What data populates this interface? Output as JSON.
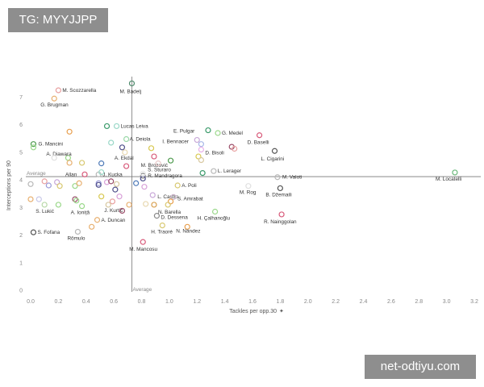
{
  "header_tag": "TG: MYYJJPP",
  "watermark": "net-odtiyu.com",
  "chart_data": {
    "type": "scatter",
    "title": "",
    "xlabel": "Tackles per opp.30",
    "ylabel": "Interceptions per 90",
    "xlim": [
      0,
      3.2
    ],
    "ylim": [
      0,
      7.6
    ],
    "xticks": [
      "0.0",
      "0.2",
      "0.4",
      "0.6",
      "0.8",
      "1.0",
      "1.2",
      "1.4",
      "1.6",
      "1.8",
      "2.0",
      "2.2",
      "2.4",
      "2.6",
      "2.8",
      "3.0",
      "3.2"
    ],
    "yticks": [
      "0",
      "1",
      "2",
      "3",
      "4",
      "5",
      "6",
      "7"
    ],
    "grid": false,
    "average": {
      "x": 0.73,
      "y": 4.12,
      "x_label": "Average",
      "y_label": "Average"
    },
    "points": [
      {
        "name": "M. Scozzarella",
        "x": 0.2,
        "y": 7.25,
        "color": "#e8a0a0"
      },
      {
        "name": "G. Brugman",
        "x": 0.17,
        "y": 6.95,
        "color": "#e8b070"
      },
      {
        "name": "M. Badelj",
        "x": 0.73,
        "y": 7.5,
        "color": "#4e8a6c"
      },
      {
        "name": "Lucas Leiva",
        "x": 0.62,
        "y": 5.95,
        "color": "#9ad8c8"
      },
      {
        "name": "",
        "x": 0.55,
        "y": 5.95,
        "color": "#3a9a6a"
      },
      {
        "name": "E. Pulgar",
        "x": 1.28,
        "y": 5.8,
        "color": "#3a9a6a"
      },
      {
        "name": "G. Medel",
        "x": 1.35,
        "y": 5.7,
        "color": "#9ad88a"
      },
      {
        "name": "",
        "x": 0.28,
        "y": 5.75,
        "color": "#e8a050"
      },
      {
        "name": "D. Baselli",
        "x": 1.65,
        "y": 5.62,
        "color": "#d85a7a"
      },
      {
        "name": "A. Deiola",
        "x": 0.69,
        "y": 5.48,
        "color": "#9ad8a8"
      },
      {
        "name": "I. Bennacer",
        "x": 1.2,
        "y": 5.45,
        "color": "#c8a8d8"
      },
      {
        "name": "",
        "x": 1.23,
        "y": 5.3,
        "color": "#a8b8e8"
      },
      {
        "name": "G. Mancini",
        "x": 0.02,
        "y": 5.3,
        "color": "#4e9a4e"
      },
      {
        "name": "",
        "x": 0.02,
        "y": 5.18,
        "color": "#9ad88a"
      },
      {
        "name": "",
        "x": 0.58,
        "y": 5.35,
        "color": "#9ad8c8"
      },
      {
        "name": "",
        "x": 0.66,
        "y": 5.18,
        "color": "#4e4e8a"
      },
      {
        "name": "",
        "x": 0.87,
        "y": 5.15,
        "color": "#d8c850"
      },
      {
        "name": "D. Bisoli",
        "x": 1.23,
        "y": 5.1,
        "color": "#e8b0e8"
      },
      {
        "name": "",
        "x": 1.45,
        "y": 5.2,
        "color": "#9a4e6a"
      },
      {
        "name": "",
        "x": 1.47,
        "y": 5.13,
        "color": "#e8a0a0"
      },
      {
        "name": "L. Cigarini",
        "x": 1.76,
        "y": 5.05,
        "color": "#555555"
      },
      {
        "name": "A. Ekdal",
        "x": 0.68,
        "y": 5.0,
        "color": "#e8d8b0"
      },
      {
        "name": "A. Diawara",
        "x": 0.27,
        "y": 4.8,
        "color": "#9ad88a"
      },
      {
        "name": "",
        "x": 0.17,
        "y": 4.8,
        "color": "#e0e0e0"
      },
      {
        "name": "",
        "x": 0.28,
        "y": 4.62,
        "color": "#e8b070"
      },
      {
        "name": "",
        "x": 0.37,
        "y": 4.62,
        "color": "#d8c870"
      },
      {
        "name": "",
        "x": 0.51,
        "y": 4.6,
        "color": "#4e7ab8"
      },
      {
        "name": "M. Brozović",
        "x": 1.01,
        "y": 4.7,
        "color": "#4e9a4e"
      },
      {
        "name": "",
        "x": 0.89,
        "y": 4.85,
        "color": "#d85a7a"
      },
      {
        "name": "",
        "x": 1.21,
        "y": 4.85,
        "color": "#d8c850"
      },
      {
        "name": "",
        "x": 1.23,
        "y": 4.72,
        "color": "#d8c8a0"
      },
      {
        "name": "S. Sturaro",
        "x": 0.92,
        "y": 4.6,
        "color": "#e8c8c8"
      },
      {
        "name": "",
        "x": 0.69,
        "y": 4.5,
        "color": "#d85a7a"
      },
      {
        "name": "L. Lerager",
        "x": 1.32,
        "y": 4.32,
        "color": "#b8b8b8"
      },
      {
        "name": "",
        "x": 1.24,
        "y": 4.25,
        "color": "#3a9a6a"
      },
      {
        "name": "J. Kucka",
        "x": 0.49,
        "y": 4.2,
        "color": "#b8b8b8"
      },
      {
        "name": "",
        "x": 0.51,
        "y": 4.28,
        "color": "#9ad8c8"
      },
      {
        "name": "Allan",
        "x": 0.39,
        "y": 4.2,
        "color": "#d85a7a"
      },
      {
        "name": "R. Mandragora",
        "x": 0.81,
        "y": 4.15,
        "color": "#888888"
      },
      {
        "name": "",
        "x": 0.81,
        "y": 4.05,
        "color": "#4e4e8a"
      },
      {
        "name": "",
        "x": 0.81,
        "y": 4.23,
        "color": "#e8e8e8"
      },
      {
        "name": "M. Valoti",
        "x": 1.78,
        "y": 4.1,
        "color": "#b8b8b8"
      },
      {
        "name": "M. Locatelli",
        "x": 3.06,
        "y": 4.27,
        "color": "#6ab87a"
      },
      {
        "name": "",
        "x": 0.0,
        "y": 3.85,
        "color": "#b8b8b8"
      },
      {
        "name": "",
        "x": 0.1,
        "y": 3.95,
        "color": "#e8a0a0"
      },
      {
        "name": "",
        "x": 0.19,
        "y": 3.92,
        "color": "#c8a8d8"
      },
      {
        "name": "",
        "x": 0.13,
        "y": 3.8,
        "color": "#9a9ad8"
      },
      {
        "name": "",
        "x": 0.21,
        "y": 3.78,
        "color": "#d8c870"
      },
      {
        "name": "",
        "x": 0.32,
        "y": 3.78,
        "color": "#9ad88a"
      },
      {
        "name": "",
        "x": 0.35,
        "y": 3.88,
        "color": "#e8b070"
      },
      {
        "name": "",
        "x": 0.49,
        "y": 3.88,
        "color": "#9a9ad8"
      },
      {
        "name": "",
        "x": 0.49,
        "y": 3.82,
        "color": "#4e4e8a"
      },
      {
        "name": "",
        "x": 0.55,
        "y": 3.92,
        "color": "#d8a0d8"
      },
      {
        "name": "",
        "x": 0.58,
        "y": 3.95,
        "color": "#9a4e6a"
      },
      {
        "name": "",
        "x": 0.62,
        "y": 3.85,
        "color": "#d8c8a0"
      },
      {
        "name": "",
        "x": 0.76,
        "y": 3.88,
        "color": "#4e7ab8"
      },
      {
        "name": "",
        "x": 0.82,
        "y": 3.75,
        "color": "#d8a0d8"
      },
      {
        "name": "A. Poli",
        "x": 1.06,
        "y": 3.8,
        "color": "#d8c870"
      },
      {
        "name": "M. Rog",
        "x": 1.57,
        "y": 3.78,
        "color": "#e0e0e0"
      },
      {
        "name": "B. Džemaili",
        "x": 1.8,
        "y": 3.7,
        "color": "#555555"
      },
      {
        "name": "L. Castro",
        "x": 0.88,
        "y": 3.45,
        "color": "#c8a8d8"
      },
      {
        "name": "",
        "x": 0.61,
        "y": 3.65,
        "color": "#4e4e8a"
      },
      {
        "name": "S. Amrabat",
        "x": 1.03,
        "y": 3.38,
        "color": "#c8b0c8"
      },
      {
        "name": "",
        "x": 1.01,
        "y": 3.22,
        "color": "#e8a050"
      },
      {
        "name": "",
        "x": 0.0,
        "y": 3.3,
        "color": "#e8b070"
      },
      {
        "name": "",
        "x": 0.06,
        "y": 3.3,
        "color": "#c8c8e8"
      },
      {
        "name": "",
        "x": 0.32,
        "y": 3.3,
        "color": "#9a4e6a"
      },
      {
        "name": "",
        "x": 0.33,
        "y": 3.25,
        "color": "#9ad88a"
      },
      {
        "name": "",
        "x": 0.51,
        "y": 3.4,
        "color": "#d8c850"
      },
      {
        "name": "",
        "x": 0.59,
        "y": 3.22,
        "color": "#e8a0a0"
      },
      {
        "name": "",
        "x": 0.64,
        "y": 3.4,
        "color": "#d8a0d8"
      },
      {
        "name": "S. Lukić",
        "x": 0.1,
        "y": 3.1,
        "color": "#b8d8a8"
      },
      {
        "name": "",
        "x": 0.2,
        "y": 3.1,
        "color": "#9ad88a"
      },
      {
        "name": "A. Ioniță",
        "x": 0.37,
        "y": 3.05,
        "color": "#9ad88a"
      },
      {
        "name": "J. Kurtič",
        "x": 0.56,
        "y": 3.1,
        "color": "#d8c8a0"
      },
      {
        "name": "",
        "x": 0.71,
        "y": 3.1,
        "color": "#e8b070"
      },
      {
        "name": "N. Barella",
        "x": 0.89,
        "y": 3.1,
        "color": "#d8a050"
      },
      {
        "name": "",
        "x": 0.83,
        "y": 3.13,
        "color": "#e8d8b0"
      },
      {
        "name": "",
        "x": 0.99,
        "y": 3.1,
        "color": "#d8c870"
      },
      {
        "name": "",
        "x": 0.66,
        "y": 2.88,
        "color": "#9a4e6a"
      },
      {
        "name": "D. Dessena",
        "x": 0.91,
        "y": 2.7,
        "color": "#888888"
      },
      {
        "name": "H. Çalhanoğlu",
        "x": 1.33,
        "y": 2.85,
        "color": "#9ad88a"
      },
      {
        "name": "R. Nainggolan",
        "x": 1.81,
        "y": 2.75,
        "color": "#d85a7a"
      },
      {
        "name": "A. Duncan",
        "x": 0.48,
        "y": 2.55,
        "color": "#e8b070"
      },
      {
        "name": "",
        "x": 0.44,
        "y": 2.3,
        "color": "#e8b070"
      },
      {
        "name": "H. Traoré",
        "x": 0.95,
        "y": 2.35,
        "color": "#d8c870"
      },
      {
        "name": "N. Nández",
        "x": 1.13,
        "y": 2.3,
        "color": "#e8a050"
      },
      {
        "name": "S. Fofana",
        "x": 0.02,
        "y": 2.1,
        "color": "#555555"
      },
      {
        "name": "Rômulo",
        "x": 0.34,
        "y": 2.12,
        "color": "#b8b8b8"
      },
      {
        "name": "M. Mancosu",
        "x": 0.81,
        "y": 1.75,
        "color": "#d85a7a"
      }
    ]
  }
}
